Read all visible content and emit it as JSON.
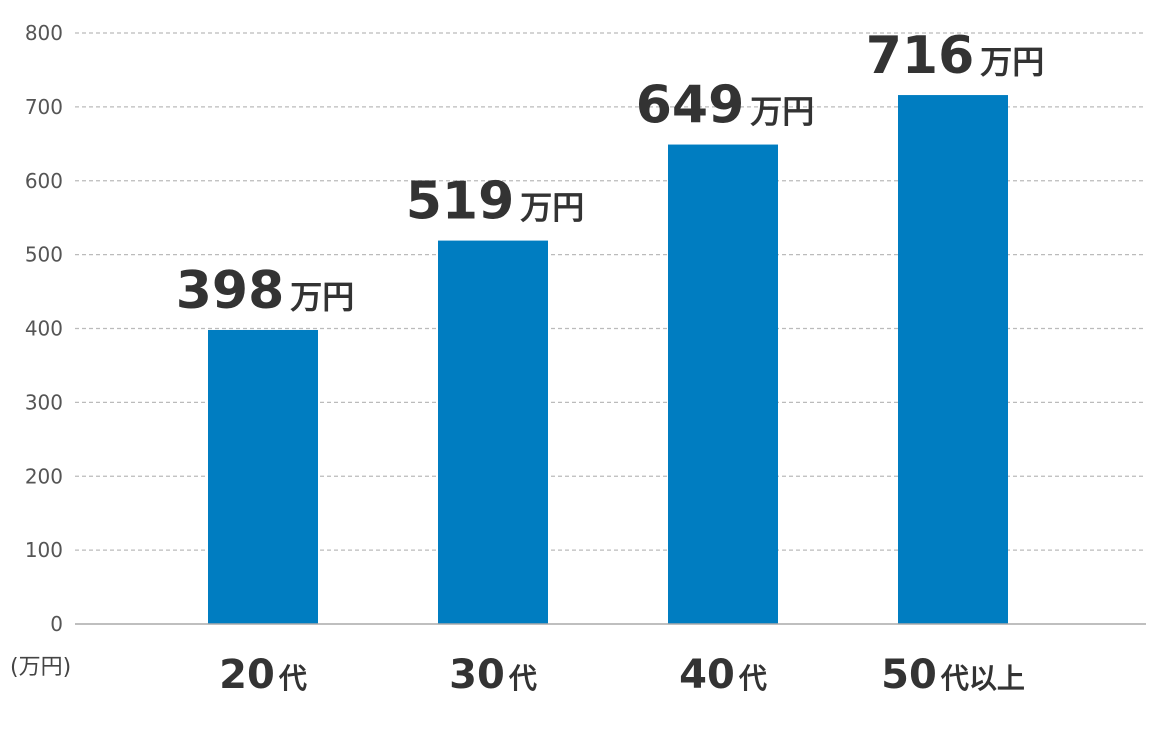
{
  "chart_data": {
    "type": "bar",
    "categories": [
      "20代",
      "30代",
      "40代",
      "50代以上"
    ],
    "category_parts": [
      {
        "num": "20",
        "suffix": "代"
      },
      {
        "num": "30",
        "suffix": "代"
      },
      {
        "num": "40",
        "suffix": "代"
      },
      {
        "num": "50",
        "suffix": "代以上"
      }
    ],
    "values": [
      398,
      519,
      649,
      716
    ],
    "data_label_unit": "万円",
    "y_unit_label": "(万円)",
    "yticks": [
      0,
      100,
      200,
      300,
      400,
      500,
      600,
      700,
      800
    ],
    "ylim": [
      0,
      800
    ],
    "grid": true,
    "bar_color": "#007DC1",
    "grid_color": "#BBBBBB",
    "axis_color": "#AAAAAA"
  }
}
